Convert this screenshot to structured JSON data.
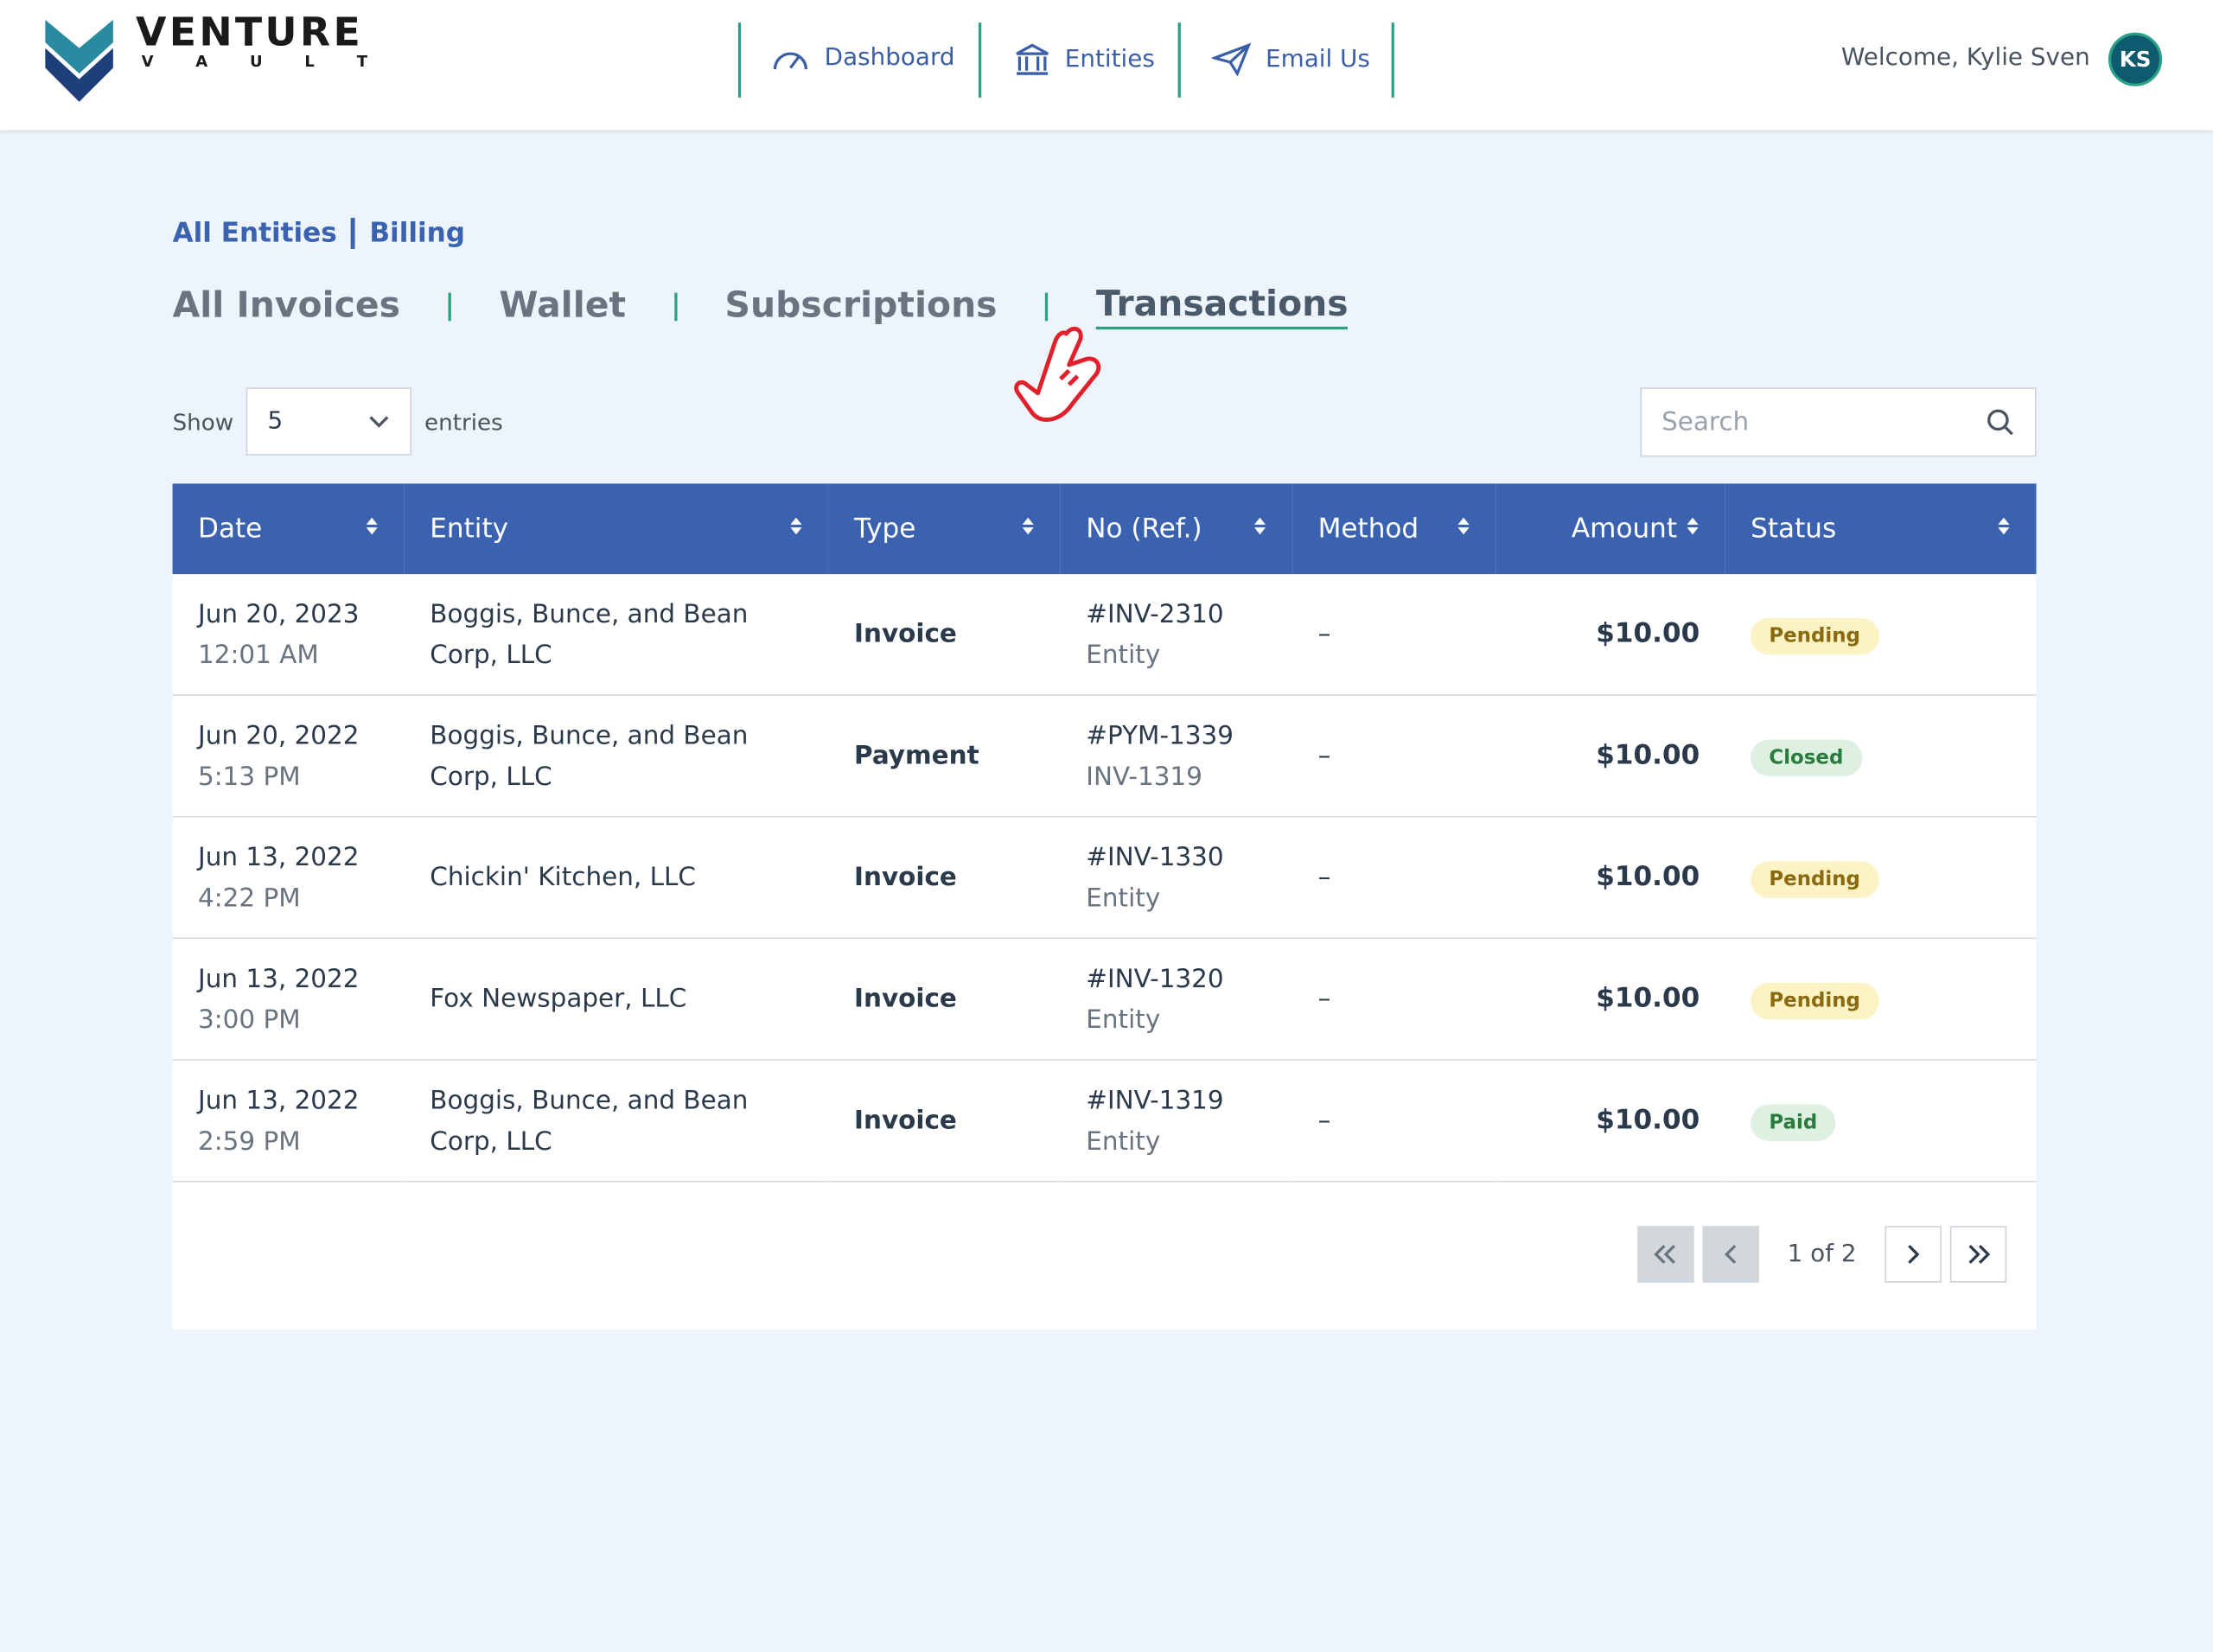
{
  "header": {
    "logo": {
      "title": "VENTURE",
      "subtitle": "V A U L T"
    },
    "nav": [
      "Dashboard",
      "Entities",
      "Email Us"
    ],
    "welcome": "Welcome, Kylie Sven",
    "avatar": "KS"
  },
  "breadcrumb": [
    "All Entities",
    "Billing"
  ],
  "tabs": [
    "All Invoices",
    "Wallet",
    "Subscriptions",
    "Transactions"
  ],
  "active_tab": "Transactions",
  "show": {
    "label": "Show",
    "value": "5",
    "suffix": "entries"
  },
  "search_placeholder": "Search",
  "table": {
    "columns": [
      "Date",
      "Entity",
      "Type",
      "No (Ref.)",
      "Method",
      "Amount",
      "Status"
    ],
    "rows": [
      {
        "date": "Jun 20, 2023",
        "time": "12:01 AM",
        "entity": "Boggis, Bunce, and Bean Corp, LLC",
        "type": "Invoice",
        "ref": "#INV-2310",
        "ref_note": "Entity",
        "method": "–",
        "amount": "$10.00",
        "status": "Pending",
        "status_bg": "#fbf3c4",
        "status_fg": "#8a6a10"
      },
      {
        "date": "Jun 20, 2022",
        "time": "5:13 PM",
        "entity": "Boggis, Bunce, and Bean Corp, LLC",
        "type": "Payment",
        "ref": "#PYM-1339",
        "ref_note": "INV-1319",
        "method": "–",
        "amount": "$10.00",
        "status": "Closed",
        "status_bg": "#def0e2",
        "status_fg": "#2b7a3e"
      },
      {
        "date": "Jun 13, 2022",
        "time": "4:22 PM",
        "entity": "Chickin' Kitchen, LLC",
        "type": "Invoice",
        "ref": "#INV-1330",
        "ref_note": "Entity",
        "method": "–",
        "amount": "$10.00",
        "status": "Pending",
        "status_bg": "#fbf3c4",
        "status_fg": "#8a6a10"
      },
      {
        "date": "Jun 13, 2022",
        "time": "3:00 PM",
        "entity": "Fox Newspaper, LLC",
        "type": "Invoice",
        "ref": "#INV-1320",
        "ref_note": "Entity",
        "method": "–",
        "amount": "$10.00",
        "status": "Pending",
        "status_bg": "#fbf3c4",
        "status_fg": "#8a6a10"
      },
      {
        "date": "Jun 13, 2022",
        "time": "2:59 PM",
        "entity": "Boggis, Bunce, and Bean Corp, LLC",
        "type": "Invoice",
        "ref": "#INV-1319",
        "ref_note": "Entity",
        "method": "–",
        "amount": "$10.00",
        "status": "Paid",
        "status_bg": "#def0e2",
        "status_fg": "#2b7a3e"
      }
    ]
  },
  "pagination": "1 of 2"
}
